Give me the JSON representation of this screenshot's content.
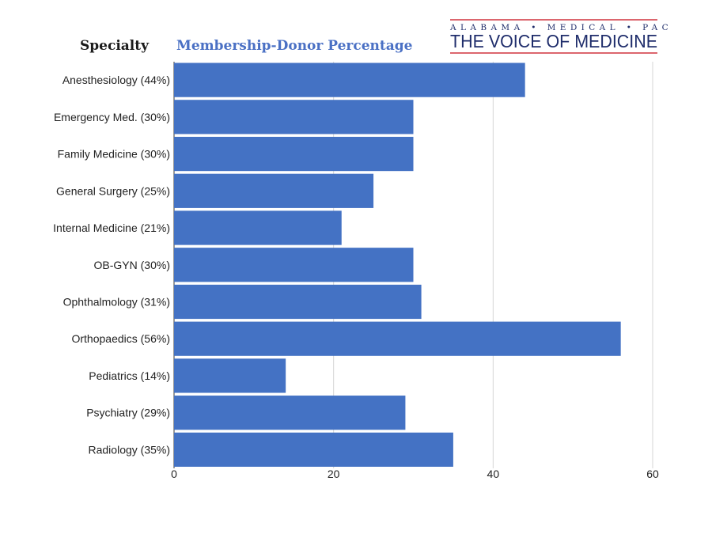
{
  "header": {
    "specialty_label": "Specialty",
    "title": "Membership-Donor Percentage",
    "title_color": "#4a70c4"
  },
  "logo": {
    "top_line": "ALABAMA • MEDICAL • PAC",
    "main_line": "THE VOICE OF MEDICINE",
    "color": "#1f2d6b",
    "rule_color": "#d0343f"
  },
  "chart_data": {
    "type": "bar",
    "orientation": "horizontal",
    "categories": [
      "Anesthesiology (44%)",
      "Emergency Med. (30%)",
      "Family Medicine (30%)",
      "General Surgery (25%)",
      "Internal Medicine (21%)",
      "OB-GYN (30%)",
      "Ophthalmology (31%)",
      "Orthopaedics (56%)",
      "Pediatrics (14%)",
      "Psychiatry (29%)",
      "Radiology (35%)"
    ],
    "values": [
      44,
      30,
      30,
      25,
      21,
      30,
      31,
      56,
      14,
      29,
      35
    ],
    "xlim": [
      0,
      60
    ],
    "xticks": [
      0,
      20,
      40,
      60
    ],
    "xtick_labels": [
      "0",
      "20",
      "40",
      "60"
    ],
    "grid": true,
    "bar_color": "#4472c4"
  }
}
